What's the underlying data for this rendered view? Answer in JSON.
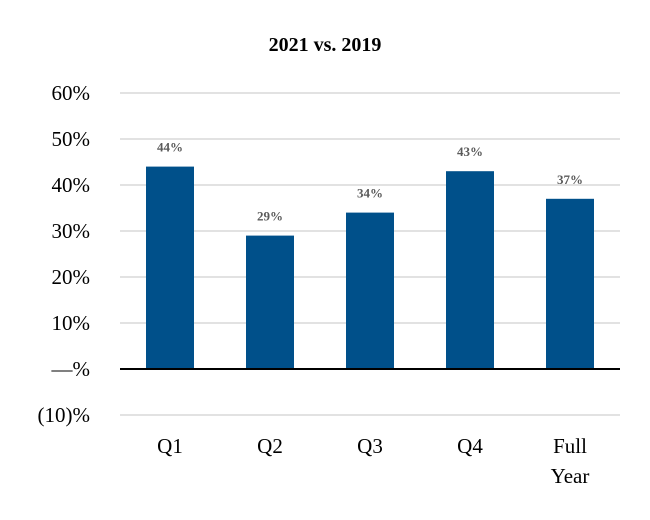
{
  "chart_data": {
    "type": "bar",
    "title": "2021 vs. 2019",
    "xlabel": "",
    "ylabel": "",
    "categories": [
      [
        "Q1"
      ],
      [
        "Q2"
      ],
      [
        "Q3"
      ],
      [
        "Q4"
      ],
      [
        "Full",
        "Year"
      ]
    ],
    "values": [
      44,
      29,
      34,
      43,
      37
    ],
    "data_labels": [
      "44%",
      "29%",
      "34%",
      "43%",
      "37%"
    ],
    "ylim": [
      -10,
      60
    ],
    "yticks": [
      60,
      50,
      40,
      30,
      20,
      10,
      0,
      -10
    ],
    "ytick_labels": [
      "60%",
      "50%",
      "40%",
      "30%",
      "20%",
      "10%",
      "—%",
      "(10)%"
    ],
    "grid": true,
    "legend": "none",
    "colors": {
      "bar": "#00508a",
      "grid": "#d9d9d9",
      "zero_line": "#000000",
      "data_label": "#5a5a5a"
    }
  }
}
